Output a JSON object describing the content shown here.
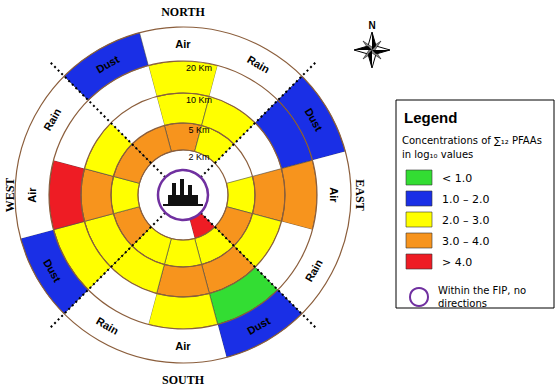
{
  "chart_data": {
    "type": "polar_sector_map",
    "compass": "N",
    "directions": [
      "NORTH",
      "EAST",
      "SOUTH",
      "WEST"
    ],
    "distance_labels": [
      "2 Km",
      "5 Km",
      "10 Km",
      "20 Km"
    ],
    "sectors": [
      {
        "medium": "Air",
        "cells": [
          null,
          "3.0 – 4.0",
          "2.0 – 3.0",
          "2.0 – 3.0",
          null
        ]
      },
      {
        "medium": "Rain",
        "cells": [
          null,
          "2.0 – 3.0",
          "2.0 – 3.0",
          null,
          null
        ]
      },
      {
        "medium": "Dust",
        "cells": [
          null,
          null,
          null,
          "1.0 – 2.0",
          "1.0 – 2.0"
        ]
      },
      {
        "medium": "Air",
        "cells": [
          null,
          "2.0 – 3.0",
          "3.0 – 4.0",
          "3.0 – 4.0",
          null
        ]
      },
      {
        "medium": "Rain",
        "cells": [
          null,
          "3.0 – 4.0",
          "2.0 – 3.0",
          null,
          null
        ]
      },
      {
        "medium": "Dust",
        "cells": [
          "> 4.0",
          "2.0 – 3.0",
          "3.0 – 4.0",
          "< 1.0",
          "1.0 – 2.0"
        ]
      },
      {
        "medium": "Air",
        "cells": [
          null,
          "2.0 – 3.0",
          "3.0 – 4.0",
          "2.0 – 3.0",
          null
        ]
      },
      {
        "medium": "Rain",
        "cells": [
          null,
          "2.0 – 3.0",
          "2.0 – 3.0",
          null,
          null
        ]
      },
      {
        "medium": "Dust",
        "cells": [
          null,
          "3.0 – 4.0",
          "2.0 – 3.0",
          "2.0 – 3.0",
          "1.0 – 2.0"
        ]
      },
      {
        "medium": "Air",
        "cells": [
          null,
          "2.0 – 3.0",
          "3.0 – 4.0",
          "> 4.0",
          null
        ]
      },
      {
        "medium": "Rain",
        "cells": [
          null,
          "3.0 – 4.0",
          "2.0 – 3.0",
          null,
          null
        ]
      },
      {
        "medium": "Dust",
        "cells": [
          null,
          "3.0 – 4.0",
          null,
          null,
          "1.0 – 2.0"
        ]
      }
    ],
    "legend": {
      "title": "Legend",
      "text": [
        "Concentrations of ∑₁₂ PFAAs",
        "in log₁₀ values"
      ],
      "classes": [
        {
          "label": "< 1.0",
          "color": "#33dd33"
        },
        {
          "label": "1.0 – 2.0",
          "color": "#1a2fe6"
        },
        {
          "label": "2.0 – 3.0",
          "color": "#ffff00"
        },
        {
          "label": "3.0 – 4.0",
          "color": "#f7941d"
        },
        {
          "label": "> 4.0",
          "color": "#ee1c24"
        }
      ],
      "fip": {
        "label": "Within the FIP, no directions",
        "color": "#7030a0"
      }
    }
  }
}
